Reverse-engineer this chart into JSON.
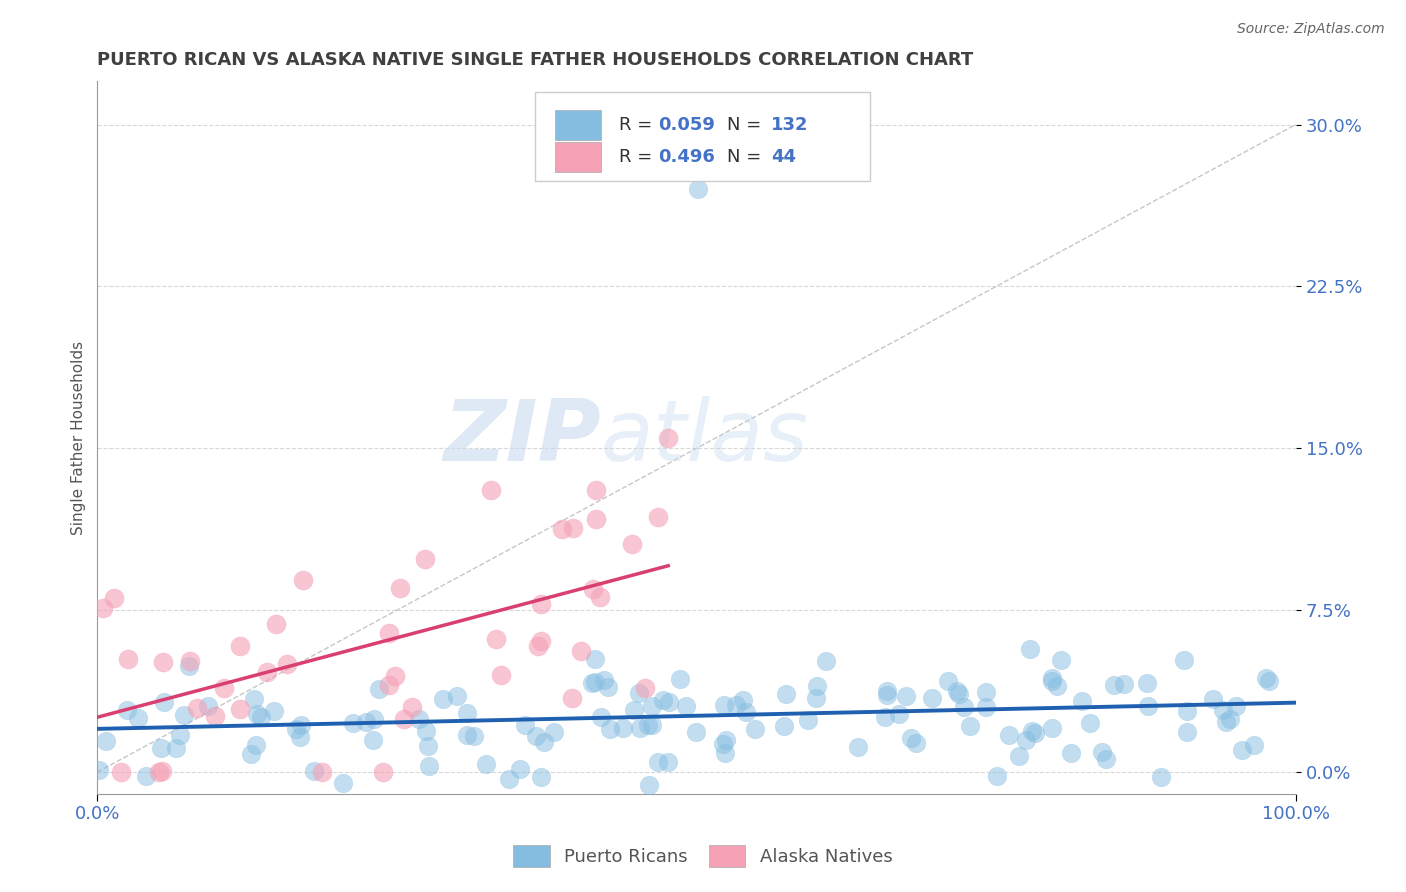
{
  "title": "PUERTO RICAN VS ALASKA NATIVE SINGLE FATHER HOUSEHOLDS CORRELATION CHART",
  "source": "Source: ZipAtlas.com",
  "ylabel": "Single Father Households",
  "xlim": [
    0.0,
    1.0
  ],
  "ylim": [
    -0.01,
    0.32
  ],
  "yticks": [
    0.0,
    0.075,
    0.15,
    0.225,
    0.3
  ],
  "ytick_labels": [
    "0.0%",
    "7.5%",
    "15.0%",
    "22.5%",
    "30.0%"
  ],
  "xtick_labels": [
    "0.0%",
    "100.0%"
  ],
  "watermark": "ZIPatlas",
  "blue_scatter_color": "#85bde0",
  "pink_scatter_color": "#f4a0b5",
  "blue_line_color": "#2060b0",
  "pink_line_color": "#d94070",
  "diag_line_color": "#c0c0c0",
  "R_blue": 0.059,
  "N_blue": 132,
  "R_pink": 0.496,
  "N_pink": 44,
  "legend_label_blue": "Puerto Ricans",
  "legend_label_pink": "Alaska Natives",
  "title_color": "#404040",
  "source_color": "#666666",
  "axis_label_color": "#4472c4",
  "tick_color": "#4472c4",
  "background_color": "#ffffff",
  "grid_color": "#d8d8d8"
}
